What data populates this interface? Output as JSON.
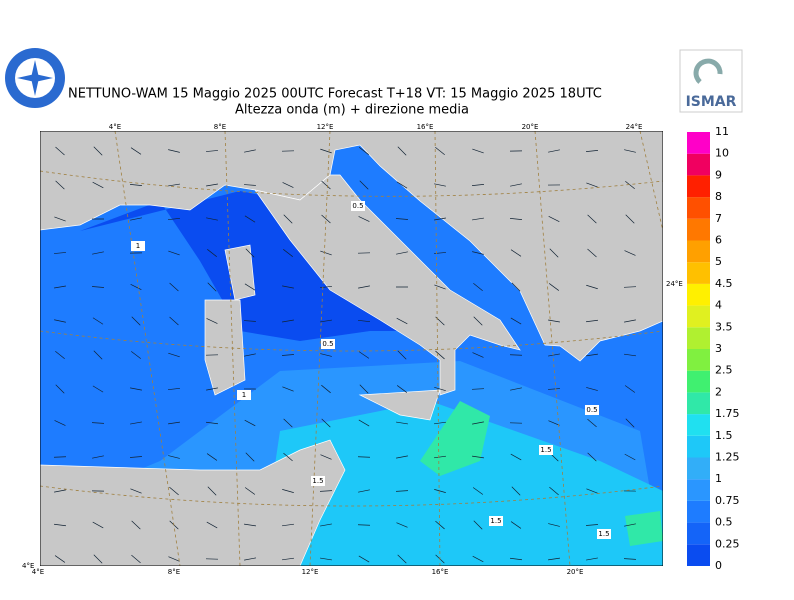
{
  "header": {
    "title": "NETTUNO-WAM  15   Maggio  2025 00UTC Forecast T+18 VT: 15   Maggio  2025 18UTC",
    "subtitle": "Altezza onda (m) + direzione media",
    "logo_right": "ISMAR"
  },
  "map": {
    "top_labels": [
      "4°E",
      "8°E",
      "12°E",
      "16°E",
      "20°E",
      "24°E"
    ],
    "bottom_labels": [
      "4°E",
      "8°E",
      "12°E",
      "16°E",
      "20°E"
    ],
    "corner_label": "4°E",
    "right_label": "24°E",
    "contour_labels": [
      "0.5",
      "0.5",
      "1",
      "1",
      "0.5",
      "1.5",
      "1.5",
      "1.5",
      "1.5"
    ]
  },
  "legend": {
    "levels": [
      0,
      0.25,
      0.5,
      0.75,
      1,
      1.25,
      1.5,
      1.75,
      2,
      2.5,
      3,
      3.5,
      4,
      4.5,
      5,
      6,
      7,
      8,
      9,
      10,
      11
    ],
    "colors": [
      "#0a4cf0",
      "#1464f8",
      "#1e7cff",
      "#2a96ff",
      "#32aef8",
      "#1ec8f8",
      "#20e0f0",
      "#30e8a8",
      "#40f070",
      "#80f040",
      "#b0f030",
      "#e0f020",
      "#fff000",
      "#ffc000",
      "#ffa000",
      "#ff7800",
      "#ff5000",
      "#ff2000",
      "#f00060",
      "#ff00c8"
    ]
  }
}
